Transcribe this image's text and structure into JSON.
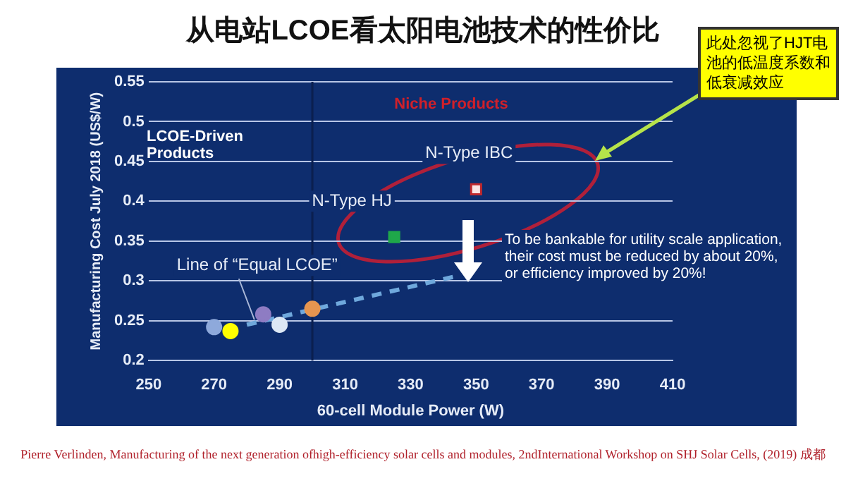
{
  "chart_data": {
    "type": "scatter",
    "title": "从电站LCOE看太阳电池技术的性价比",
    "xlabel": "60-cell Module Power (W)",
    "ylabel": "Manufacturing Cost July 2018 (US$/W)",
    "xlim": [
      250,
      410
    ],
    "xticks": [
      250,
      270,
      290,
      310,
      330,
      350,
      370,
      390,
      410
    ],
    "ylim": [
      0.2,
      0.55
    ],
    "yticks": [
      0.2,
      0.25,
      0.3,
      0.35,
      0.4,
      0.45,
      0.5,
      0.55
    ],
    "grid": "y",
    "legend": false,
    "series": [
      {
        "type": "scatter",
        "marker": "circle",
        "x": [
          270,
          275,
          285,
          290,
          300
        ],
        "values": [
          0.242,
          0.237,
          0.258,
          0.245,
          0.265
        ],
        "colors": [
          "#8ea9db",
          "#ffff00",
          "#8e7cc3",
          "#dde8f5",
          "#e69550"
        ]
      },
      {
        "type": "scatter",
        "marker": "square",
        "x": [
          325,
          350
        ],
        "values": [
          0.355,
          0.415
        ],
        "colors": [
          "#1fa84a",
          "#fbe4e4"
        ]
      },
      {
        "type": "line",
        "marker": "none",
        "line_style": "dashed",
        "color": "#6fa8dc",
        "x": [
          280,
          343
        ],
        "values": [
          0.245,
          0.305
        ]
      }
    ],
    "ref_lines": [
      {
        "axis": "x",
        "value": 300,
        "color": "#0b1f4f"
      }
    ],
    "annotations": [
      "LCOE-Driven Products",
      "Niche Products",
      {
        "text": "N-Type IBC",
        "x": 350,
        "y": 0.415
      },
      {
        "text": "N-Type HJ",
        "x": 325,
        "y": 0.355
      },
      {
        "text": "Line of “Equal LCOE”",
        "x": 281,
        "y": 0.246
      },
      "To be bankable for utility scale application, their cost must be reduced by about 20%, or efficiency improved by 20%!",
      "此处忽视了HJT电池的低温度系数和低衰减效应",
      "Pierre Verlinden, Manufacturing of the next generation ofhigh-efficiency solar cells and modules, 2ndInternational Workshop on SHJ Solar Cells, (2019) 成都"
    ]
  }
}
